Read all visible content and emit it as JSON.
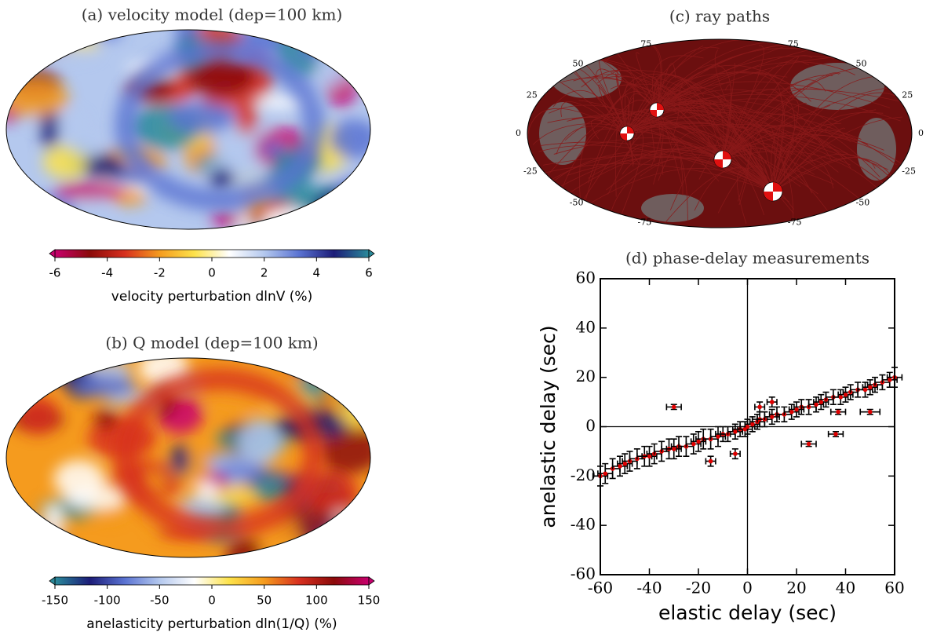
{
  "chart_data": [
    {
      "type": "map",
      "title": "(a) velocity model (dep=100 km)",
      "colormap": [
        "#c8006e",
        "#8b0a0a",
        "#d7301f",
        "#f59b1e",
        "#fde24a",
        "#ffffff",
        "#b4c8ee",
        "#5a73d2",
        "#1c1c78",
        "#2a8a9a"
      ],
      "clim": [
        -6,
        6
      ],
      "cticks": [
        -6,
        -4,
        -2,
        0,
        2,
        4,
        6
      ],
      "colorbar_label": "velocity perturbation dlnV (%)"
    },
    {
      "type": "map",
      "title": "(b) Q model (dep=100 km)",
      "colormap": [
        "#2a8a9a",
        "#1c1c78",
        "#5a73d2",
        "#b4c8ee",
        "#ffffff",
        "#fde24a",
        "#f59b1e",
        "#d7301f",
        "#8b0a0a",
        "#c8006e"
      ],
      "clim": [
        -150,
        150
      ],
      "cticks": [
        -150,
        -100,
        -50,
        0,
        50,
        100,
        150
      ],
      "colorbar_label": "anelasticity perturbation dln(1/Q) (%)"
    },
    {
      "type": "raymap",
      "title": "(c) ray paths",
      "color": "#6b0f0f",
      "yticks": [
        75,
        50,
        25,
        0,
        -25,
        -50,
        -75
      ]
    },
    {
      "type": "scatter",
      "title": "(d) phase-delay measurements",
      "x_label": "elastic delay (sec)",
      "y_label": "anelastic delay (sec)",
      "color": "#e00000",
      "errorbar_color": "#000000",
      "zero_lines": true,
      "xlim": [
        -60,
        60
      ],
      "ylim": [
        -60,
        60
      ],
      "xticks": [
        -60,
        -40,
        -20,
        0,
        20,
        40,
        60
      ],
      "yticks": [
        -60,
        -40,
        -20,
        0,
        20,
        40,
        60
      ],
      "x": [
        -60,
        -58,
        -55,
        -52,
        -50,
        -48,
        -45,
        -42,
        -40,
        -38,
        -35,
        -32,
        -30,
        -28,
        -25,
        -22,
        -20,
        -18,
        -15,
        -12,
        -10,
        -8,
        -5,
        -3,
        -1,
        0,
        2,
        4,
        5,
        7,
        10,
        12,
        15,
        18,
        20,
        22,
        25,
        28,
        30,
        32,
        35,
        38,
        40,
        42,
        45,
        48,
        50,
        52,
        55,
        58,
        60,
        -30,
        50,
        37,
        25,
        36,
        10,
        5,
        -15,
        -5
      ],
      "values": [
        -20,
        -19,
        -17,
        -16,
        -15,
        -14,
        -13,
        -12,
        -12,
        -11,
        -10,
        -9,
        -9,
        -8,
        -8,
        -7,
        -6,
        -5,
        -5,
        -4,
        -3,
        -3,
        -2,
        -1,
        -1,
        0,
        1,
        2,
        3,
        3,
        4,
        5,
        5,
        6,
        7,
        8,
        8,
        9,
        10,
        11,
        12,
        12,
        13,
        14,
        15,
        15,
        16,
        17,
        18,
        19,
        20,
        8,
        6,
        6,
        -7,
        -3,
        10,
        8,
        -14,
        -11
      ],
      "xerr": [
        3,
        3,
        3,
        3,
        3,
        3,
        3,
        3,
        3,
        3,
        3,
        3,
        3,
        3,
        3,
        3,
        3,
        3,
        3,
        3,
        3,
        3,
        3,
        3,
        3,
        3,
        3,
        3,
        3,
        3,
        3,
        3,
        3,
        3,
        3,
        3,
        3,
        3,
        3,
        3,
        3,
        3,
        3,
        3,
        3,
        3,
        3,
        3,
        3,
        3,
        3,
        3,
        4,
        3,
        3,
        3,
        2,
        2,
        2,
        2
      ],
      "yerr": [
        4,
        4,
        4,
        4,
        4,
        4,
        4,
        4,
        4,
        4,
        4,
        4,
        4,
        4,
        4,
        4,
        4,
        4,
        4,
        4,
        3,
        3,
        3,
        3,
        3,
        3,
        3,
        3,
        3,
        3,
        3,
        3,
        3,
        3,
        3,
        3,
        3,
        3,
        3,
        3,
        3,
        3,
        3,
        3,
        3,
        3,
        3,
        3,
        3,
        3,
        4,
        1,
        1,
        1,
        1,
        1,
        2,
        2,
        2,
        2
      ]
    }
  ]
}
